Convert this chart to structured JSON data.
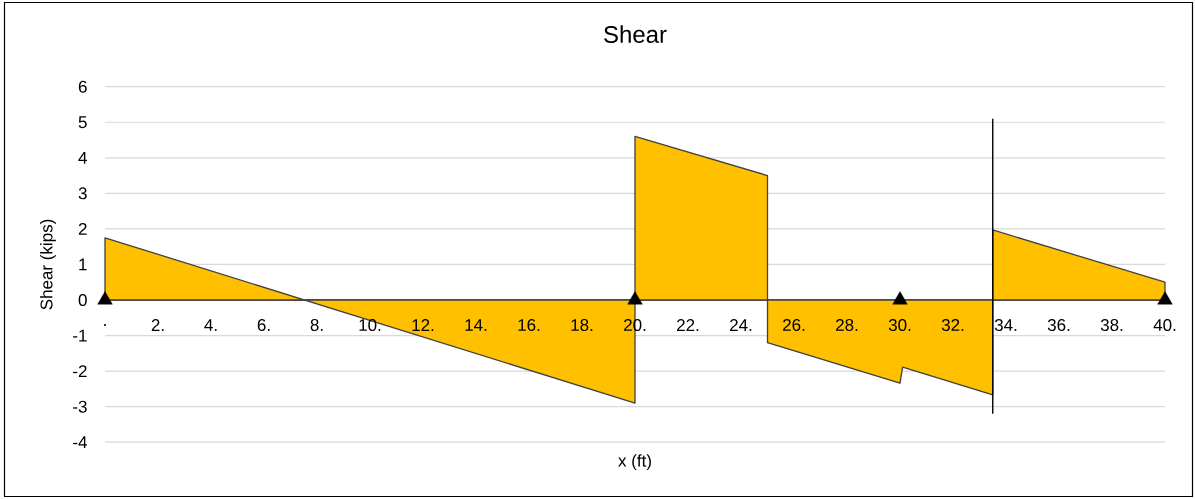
{
  "chart_data": {
    "type": "area",
    "title": "Shear",
    "xlabel": "x (ft)",
    "ylabel": "Shear (kips)",
    "xlim": [
      0,
      40
    ],
    "ylim": [
      -4,
      6
    ],
    "xticks": [
      {
        "value": 0,
        "label": "."
      },
      {
        "value": 2,
        "label": "2."
      },
      {
        "value": 4,
        "label": "4."
      },
      {
        "value": 6,
        "label": "6."
      },
      {
        "value": 8,
        "label": "8."
      },
      {
        "value": 10,
        "label": "10."
      },
      {
        "value": 12,
        "label": "12."
      },
      {
        "value": 14,
        "label": "14."
      },
      {
        "value": 16,
        "label": "16."
      },
      {
        "value": 18,
        "label": "18."
      },
      {
        "value": 20,
        "label": "20."
      },
      {
        "value": 22,
        "label": "22."
      },
      {
        "value": 24,
        "label": "24."
      },
      {
        "value": 26,
        "label": "26."
      },
      {
        "value": 28,
        "label": "28."
      },
      {
        "value": 30,
        "label": "30."
      },
      {
        "value": 32,
        "label": "32."
      },
      {
        "value": 34,
        "label": "34."
      },
      {
        "value": 36,
        "label": "36."
      },
      {
        "value": 38,
        "label": "38."
      },
      {
        "value": 40,
        "label": "40."
      }
    ],
    "yticks": [
      -4,
      -3,
      -2,
      -1,
      0,
      1,
      2,
      3,
      4,
      5,
      6
    ],
    "grid": "y",
    "series": [
      {
        "color": "#ffc000",
        "x": [
          0,
          20,
          20,
          25,
          25,
          30,
          30.1,
          33.5,
          33.5,
          40
        ],
        "values": [
          1.75,
          -2.9,
          4.6,
          3.5,
          -1.2,
          -2.34,
          -1.89,
          -2.67,
          1.97,
          0.5
        ]
      },
      {
        "type": "line",
        "color": "#000000",
        "x": [
          33.5,
          33.5
        ],
        "values": [
          -3.2,
          5.1
        ]
      },
      {
        "type": "scatter",
        "color": "#000000",
        "marker": "triangle",
        "x": [
          0,
          20,
          30,
          40
        ],
        "values": [
          0,
          0,
          0,
          0
        ]
      }
    ]
  }
}
